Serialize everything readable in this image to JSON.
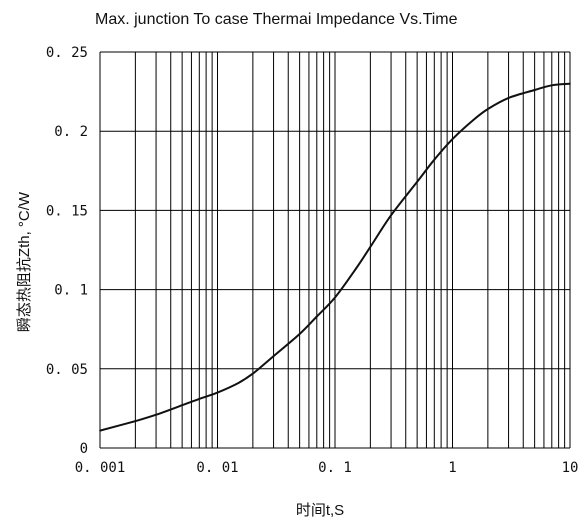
{
  "chart_data": {
    "type": "line",
    "title": "Max. junction To case Thermai Impedance Vs.Time",
    "xlabel": "时间t,S",
    "ylabel": "瞬态热阻抗Zth, °C/W",
    "xscale": "log",
    "xlim": [
      0.001,
      10
    ],
    "ylim": [
      0,
      0.25
    ],
    "x_ticks": [
      "0. 001",
      "0. 01",
      "0. 1",
      "1",
      "10"
    ],
    "y_ticks": [
      "0",
      "0. 05",
      "0. 1",
      "0. 15",
      "0. 2",
      "0. 25"
    ],
    "grid": true,
    "series": [
      {
        "x": [
          0.001,
          0.002,
          0.003,
          0.005,
          0.007,
          0.01,
          0.015,
          0.02,
          0.03,
          0.05,
          0.07,
          0.1,
          0.15,
          0.2,
          0.3,
          0.5,
          0.7,
          1,
          1.5,
          2,
          3,
          5,
          7,
          10
        ],
        "y": [
          0.011,
          0.017,
          0.021,
          0.027,
          0.031,
          0.035,
          0.041,
          0.047,
          0.058,
          0.072,
          0.083,
          0.095,
          0.113,
          0.127,
          0.147,
          0.168,
          0.182,
          0.195,
          0.207,
          0.214,
          0.221,
          0.226,
          0.229,
          0.23
        ]
      }
    ]
  }
}
